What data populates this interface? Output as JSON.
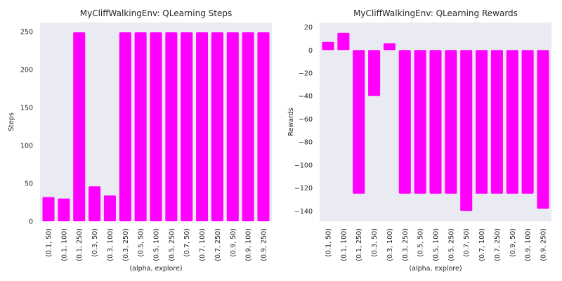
{
  "chart_data": [
    {
      "type": "bar",
      "title": "MyCliffWalkingEnv: QLearning Steps",
      "xlabel": "(alpha, explore)",
      "ylabel": "Steps",
      "ylim": [
        0,
        262
      ],
      "yticks": [
        0,
        50,
        100,
        150,
        200,
        250
      ],
      "ytick_labels": [
        "0",
        "50",
        "100",
        "150",
        "200",
        "250"
      ],
      "grid": false,
      "color": "#ff00ff",
      "background": "#eaeaf2",
      "categories": [
        "(0.1, 50)",
        "(0.1, 100)",
        "(0.1, 250)",
        "(0.3, 50)",
        "(0.3, 100)",
        "(0.3, 250)",
        "(0.5, 50)",
        "(0.5, 100)",
        "(0.5, 250)",
        "(0.7, 50)",
        "(0.7, 100)",
        "(0.7, 250)",
        "(0.9, 50)",
        "(0.9, 100)",
        "(0.9, 250)"
      ],
      "values": [
        32,
        30,
        249,
        46,
        34,
        249,
        249,
        249,
        249,
        249,
        249,
        249,
        249,
        249,
        249
      ]
    },
    {
      "type": "bar",
      "title": "MyCliffWalkingEnv: QLearning Rewards",
      "xlabel": "(alpha, explore)",
      "ylabel": "Rewards",
      "ylim": [
        -149,
        24
      ],
      "yticks": [
        20,
        0,
        -20,
        -40,
        -60,
        -80,
        -100,
        -120,
        -140
      ],
      "ytick_labels": [
        "20",
        "0",
        "−20",
        "−40",
        "−60",
        "−80",
        "−100",
        "−120",
        "−140"
      ],
      "grid": false,
      "color": "#ff00ff",
      "background": "#eaeaf2",
      "categories": [
        "(0.1, 50)",
        "(0.1, 100)",
        "(0.1, 250)",
        "(0.3, 50)",
        "(0.3, 100)",
        "(0.3, 250)",
        "(0.5, 50)",
        "(0.5, 100)",
        "(0.5, 250)",
        "(0.7, 50)",
        "(0.7, 100)",
        "(0.7, 250)",
        "(0.9, 50)",
        "(0.9, 100)",
        "(0.9, 250)"
      ],
      "values": [
        7,
        15,
        -125,
        -40,
        6,
        -125,
        -125,
        -125,
        -125,
        -140,
        -125,
        -125,
        -125,
        -125,
        -138
      ]
    }
  ]
}
